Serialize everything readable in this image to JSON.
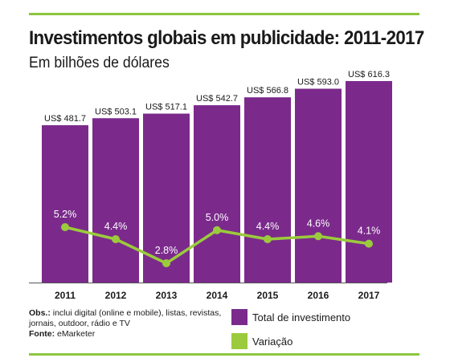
{
  "header": {
    "title": "Investimentos globais em publicidade: 2011-2017",
    "subtitle": "Em bilhões de dólares"
  },
  "colors": {
    "bar": "#7b2a8c",
    "line": "#9bcb3c",
    "rule": "#8dc63f"
  },
  "chart_data": {
    "type": "bar",
    "title": "Investimentos globais em publicidade: 2011-2017",
    "subtitle": "Em bilhões de dólares",
    "categories": [
      "2011",
      "2012",
      "2013",
      "2014",
      "2015",
      "2016",
      "2017"
    ],
    "series": [
      {
        "name": "Total de investimento",
        "type": "bar",
        "values": [
          481.7,
          503.1,
          517.1,
          542.7,
          566.8,
          593.0,
          616.3
        ],
        "labels": [
          "US$ 481.7",
          "US$ 503.1",
          "US$ 517.1",
          "US$ 542.7",
          "US$ 566.8",
          "US$ 593.0",
          "US$ 616.3"
        ]
      },
      {
        "name": "Variação",
        "type": "line",
        "values": [
          5.2,
          4.4,
          2.8,
          5.0,
          4.4,
          4.6,
          4.1
        ],
        "labels": [
          "5.2%",
          "4.4%",
          "2.8%",
          "5.0%",
          "4.4%",
          "4.6%",
          "4.1%"
        ]
      }
    ],
    "legend": [
      "Total de investimento",
      "Variação"
    ],
    "legend_position": "bottom-right",
    "grid": false
  },
  "notes": {
    "obs_label": "Obs.:",
    "obs_text": " inclui digital (online e mobile), listas, revistas, jornais, outdoor, rádio e TV",
    "source_label": "Fonte:",
    "source_text": " eMarketer"
  }
}
